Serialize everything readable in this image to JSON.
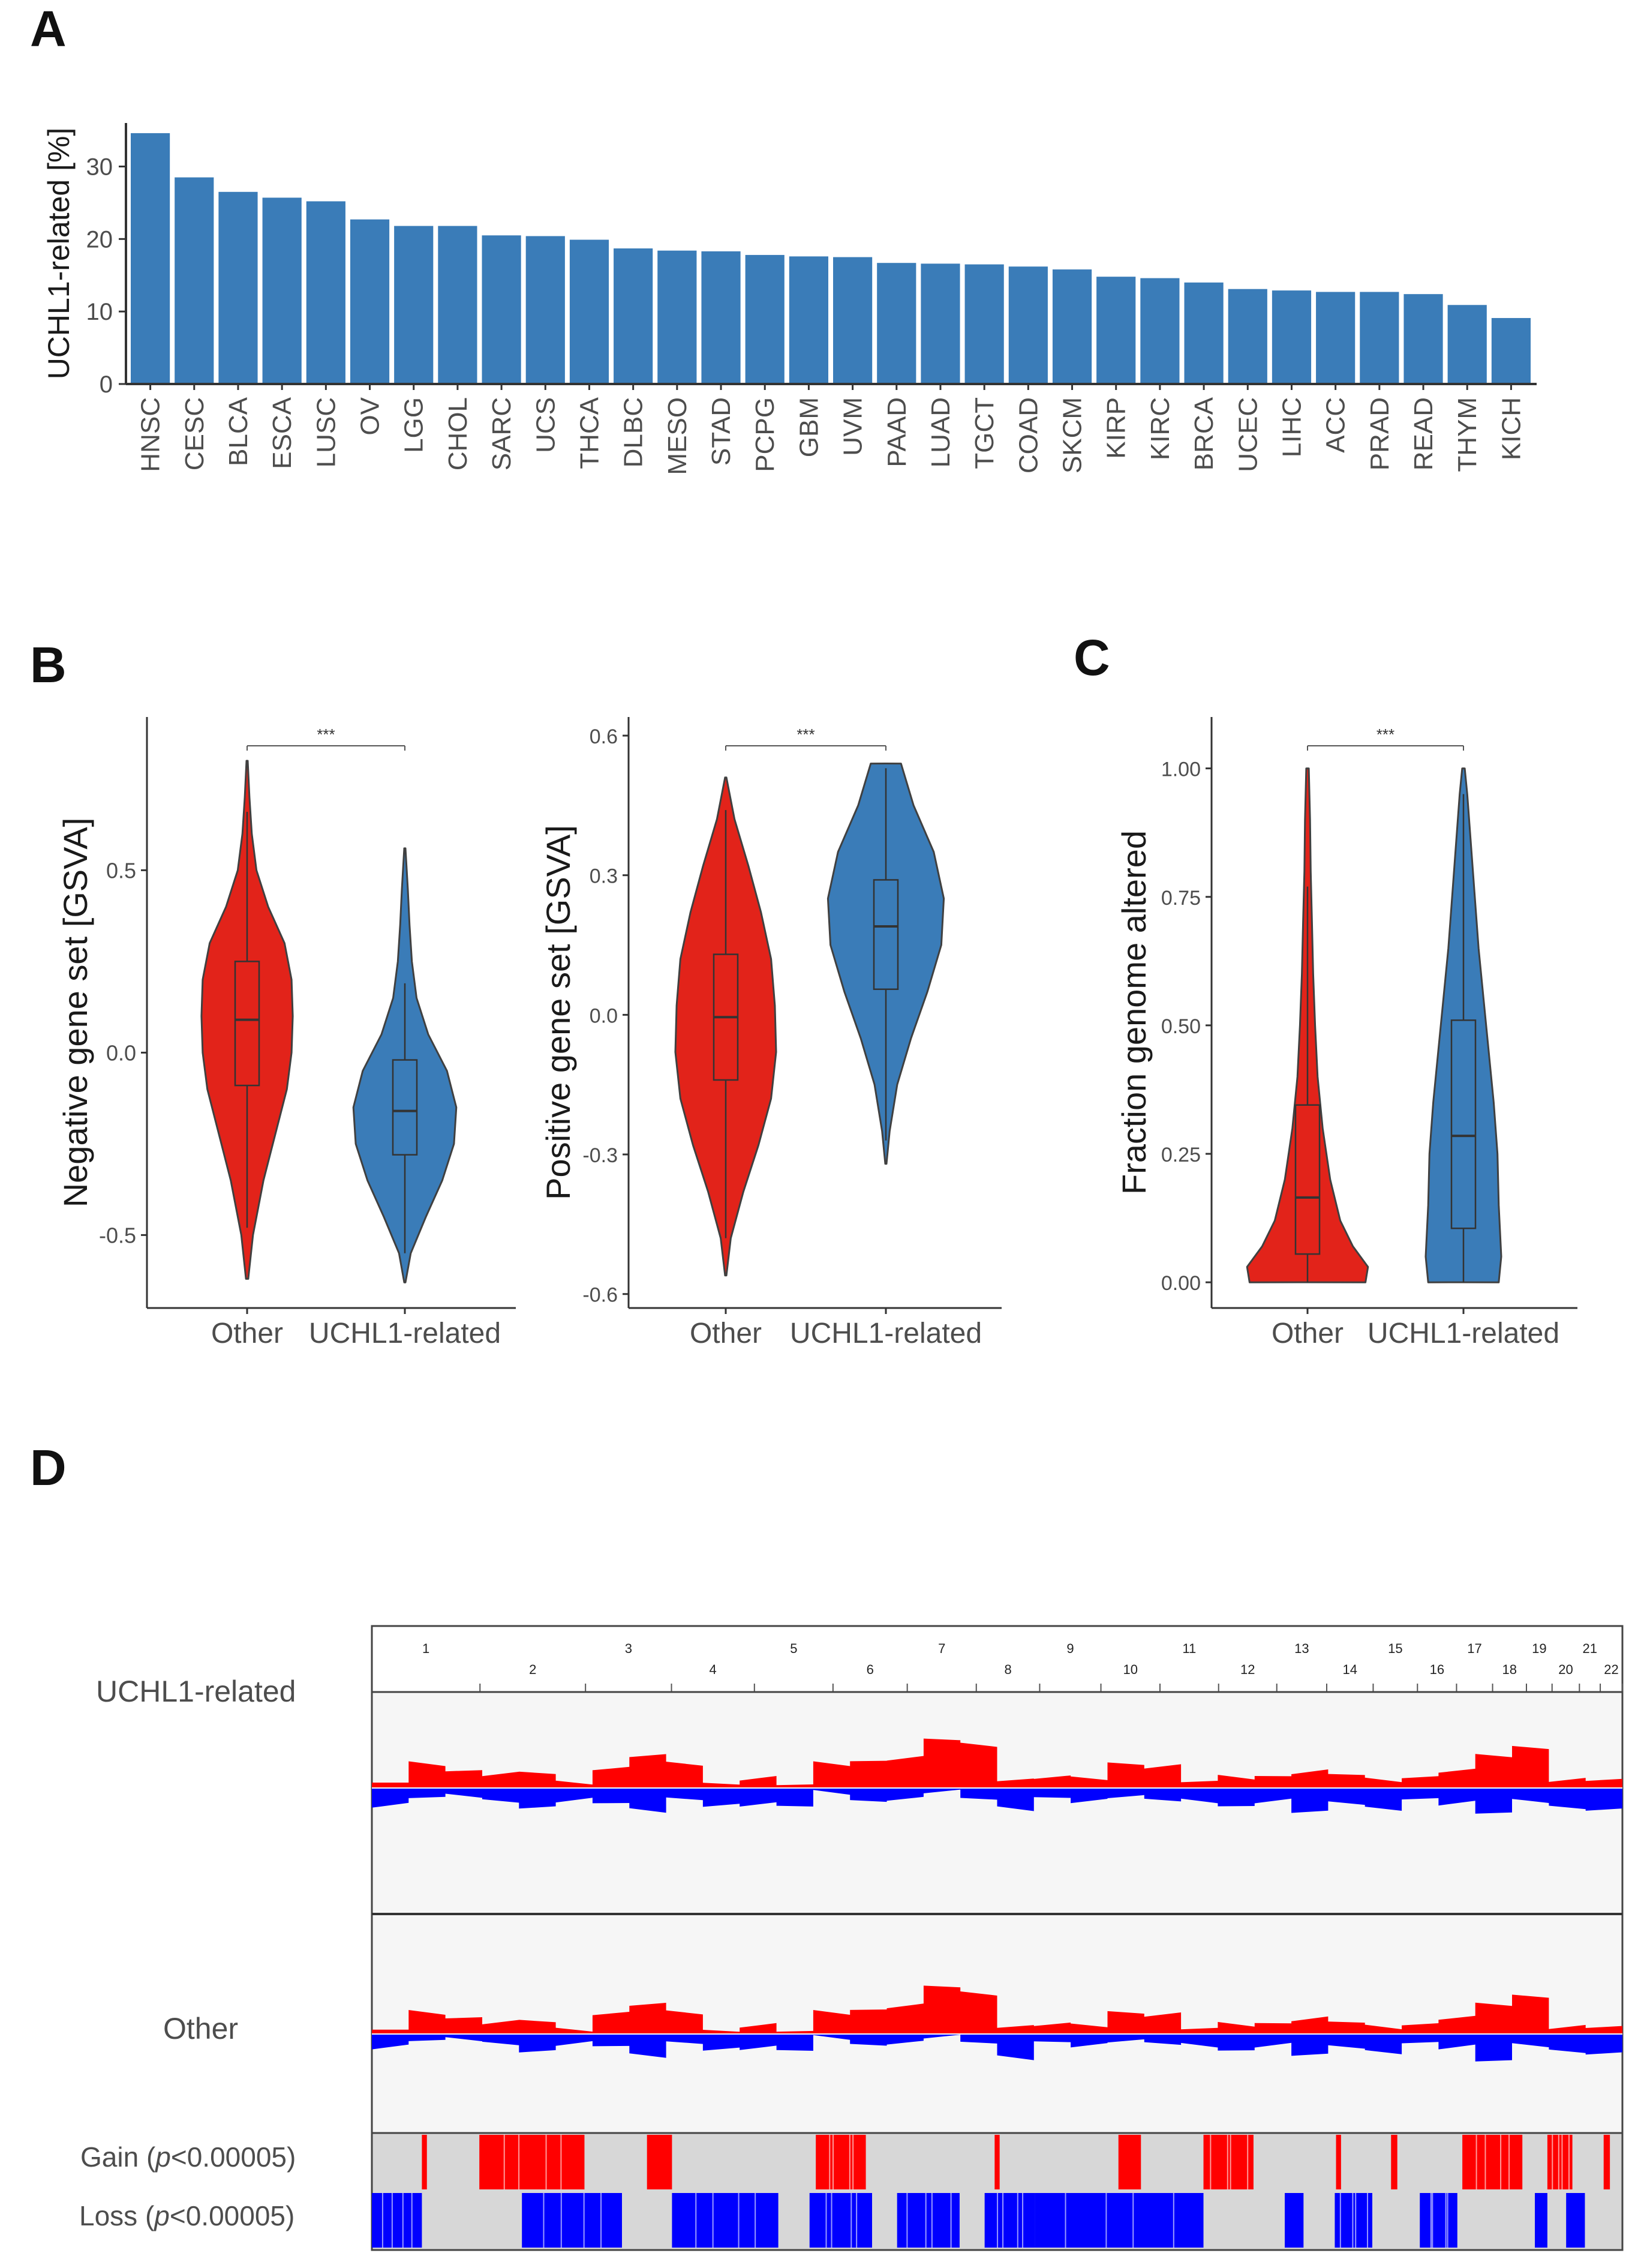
{
  "panels": {
    "a": "A",
    "b": "B",
    "c": "C",
    "d": "D"
  },
  "colors": {
    "bar": "#3a7cb8",
    "red": "#e2231a",
    "blue": "#3a7cb8",
    "gain": "#ff0000",
    "loss": "#0000ff",
    "bg": "#f6f6f6",
    "track": "#d7d7d7"
  },
  "chart_data": [
    {
      "id": "A",
      "type": "bar",
      "ylabel": "UCHL1-related [%]",
      "ylim": [
        0,
        36
      ],
      "yticks": [
        0,
        10,
        20,
        30
      ],
      "categories": [
        "HNSC",
        "CESC",
        "BLCA",
        "ESCA",
        "LUSC",
        "OV",
        "LGG",
        "CHOL",
        "SARC",
        "UCS",
        "THCA",
        "DLBC",
        "MESO",
        "STAD",
        "PCPG",
        "GBM",
        "UVM",
        "PAAD",
        "LUAD",
        "TGCT",
        "COAD",
        "SKCM",
        "KIRP",
        "KIRC",
        "BRCA",
        "UCEC",
        "LIHC",
        "ACC",
        "PRAD",
        "READ",
        "THYM",
        "KICH"
      ],
      "values": [
        34.6,
        28.5,
        26.5,
        25.7,
        25.2,
        22.7,
        21.8,
        21.8,
        20.5,
        20.4,
        19.9,
        18.7,
        18.4,
        18.3,
        17.8,
        17.6,
        17.5,
        16.7,
        16.6,
        16.5,
        16.2,
        15.8,
        14.8,
        14.6,
        14.0,
        13.1,
        12.9,
        12.7,
        12.7,
        12.4,
        10.9,
        9.1
      ]
    },
    {
      "id": "B-negative",
      "type": "violin",
      "ylabel": "Negative gene set [GSVA]",
      "ylim": [
        -0.7,
        0.92
      ],
      "yticks": [
        -0.5,
        0.0,
        0.5
      ],
      "ytick_labels": [
        "-0.5",
        "0.0",
        "0.5"
      ],
      "categories": [
        "Other",
        "UCHL1-related"
      ],
      "significance": "***",
      "groups": [
        {
          "name": "Other",
          "min": -0.62,
          "max": 0.8,
          "q1": -0.09,
          "median": 0.09,
          "q3": 0.25,
          "whisker_low": -0.48,
          "whisker_high": 0.66,
          "density": [
            [
              -0.62,
              0.01
            ],
            [
              -0.5,
              0.05
            ],
            [
              -0.35,
              0.14
            ],
            [
              -0.2,
              0.26
            ],
            [
              -0.1,
              0.34
            ],
            [
              0.0,
              0.38
            ],
            [
              0.1,
              0.39
            ],
            [
              0.2,
              0.38
            ],
            [
              0.3,
              0.32
            ],
            [
              0.4,
              0.18
            ],
            [
              0.5,
              0.08
            ],
            [
              0.6,
              0.04
            ],
            [
              0.7,
              0.02
            ],
            [
              0.8,
              0.005
            ]
          ]
        },
        {
          "name": "UCHL1-related",
          "min": -0.63,
          "max": 0.56,
          "q1": -0.28,
          "median": -0.16,
          "q3": -0.02,
          "whisker_low": -0.55,
          "whisker_high": 0.19,
          "density": [
            [
              -0.63,
              0.005
            ],
            [
              -0.55,
              0.05
            ],
            [
              -0.45,
              0.18
            ],
            [
              -0.35,
              0.32
            ],
            [
              -0.25,
              0.42
            ],
            [
              -0.15,
              0.44
            ],
            [
              -0.05,
              0.36
            ],
            [
              0.05,
              0.2
            ],
            [
              0.15,
              0.1
            ],
            [
              0.25,
              0.06
            ],
            [
              0.35,
              0.04
            ],
            [
              0.45,
              0.025
            ],
            [
              0.56,
              0.005
            ]
          ]
        }
      ]
    },
    {
      "id": "B-positive",
      "type": "violin",
      "ylabel": "Positive gene set [GSVA]",
      "ylim": [
        -0.63,
        0.64
      ],
      "yticks": [
        -0.6,
        -0.3,
        0.0,
        0.3,
        0.6
      ],
      "ytick_labels": [
        "-0.6",
        "-0.3",
        "0.0",
        "0.3",
        "0.6"
      ],
      "categories": [
        "Other",
        "UCHL1-related"
      ],
      "significance": "***",
      "groups": [
        {
          "name": "Other",
          "min": -0.56,
          "max": 0.51,
          "q1": -0.14,
          "median": -0.005,
          "q3": 0.13,
          "whisker_low": -0.48,
          "whisker_high": 0.44,
          "density": [
            [
              -0.56,
              0.005
            ],
            [
              -0.48,
              0.04
            ],
            [
              -0.38,
              0.14
            ],
            [
              -0.28,
              0.26
            ],
            [
              -0.18,
              0.36
            ],
            [
              -0.08,
              0.4
            ],
            [
              0.02,
              0.39
            ],
            [
              0.12,
              0.36
            ],
            [
              0.22,
              0.28
            ],
            [
              0.32,
              0.18
            ],
            [
              0.42,
              0.07
            ],
            [
              0.51,
              0.005
            ]
          ]
        },
        {
          "name": "UCHL1-related",
          "min": -0.32,
          "max": 0.54,
          "q1": 0.055,
          "median": 0.19,
          "q3": 0.29,
          "whisker_low": -0.27,
          "whisker_high": 0.53,
          "density": [
            [
              -0.32,
              0.005
            ],
            [
              -0.25,
              0.03
            ],
            [
              -0.15,
              0.09
            ],
            [
              -0.05,
              0.2
            ],
            [
              0.05,
              0.33
            ],
            [
              0.15,
              0.44
            ],
            [
              0.25,
              0.46
            ],
            [
              0.35,
              0.38
            ],
            [
              0.45,
              0.22
            ],
            [
              0.54,
              0.12
            ]
          ]
        }
      ]
    },
    {
      "id": "C",
      "type": "violin",
      "ylabel": "Fraction genome altered",
      "ylim": [
        -0.05,
        1.1
      ],
      "yticks": [
        0.0,
        0.25,
        0.5,
        0.75,
        1.0
      ],
      "ytick_labels": [
        "0.00",
        "0.25",
        "0.50",
        "0.75",
        "1.00"
      ],
      "categories": [
        "Other",
        "UCHL1-related"
      ],
      "significance": "***",
      "groups": [
        {
          "name": "Other",
          "min": 0.0,
          "max": 1.0,
          "q1": 0.055,
          "median": 0.165,
          "q3": 0.345,
          "whisker_low": 0.0,
          "whisker_high": 0.77,
          "density": [
            [
              0.0,
              0.46
            ],
            [
              0.03,
              0.48
            ],
            [
              0.07,
              0.36
            ],
            [
              0.12,
              0.26
            ],
            [
              0.2,
              0.18
            ],
            [
              0.3,
              0.12
            ],
            [
              0.4,
              0.08
            ],
            [
              0.5,
              0.06
            ],
            [
              0.6,
              0.045
            ],
            [
              0.7,
              0.035
            ],
            [
              0.8,
              0.025
            ],
            [
              0.9,
              0.02
            ],
            [
              1.0,
              0.01
            ]
          ]
        },
        {
          "name": "UCHL1-related",
          "min": 0.0,
          "max": 1.0,
          "q1": 0.105,
          "median": 0.285,
          "q3": 0.51,
          "whisker_low": 0.0,
          "whisker_high": 0.95,
          "density": [
            [
              0.0,
              0.28
            ],
            [
              0.05,
              0.3
            ],
            [
              0.15,
              0.28
            ],
            [
              0.25,
              0.27
            ],
            [
              0.35,
              0.24
            ],
            [
              0.45,
              0.2
            ],
            [
              0.55,
              0.16
            ],
            [
              0.65,
              0.12
            ],
            [
              0.75,
              0.09
            ],
            [
              0.85,
              0.06
            ],
            [
              0.95,
              0.03
            ],
            [
              1.0,
              0.01
            ]
          ]
        }
      ]
    },
    {
      "id": "D",
      "type": "copy-number-profile",
      "chromosomes": [
        "1",
        "2",
        "3",
        "4",
        "5",
        "6",
        "7",
        "8",
        "9",
        "10",
        "11",
        "12",
        "13",
        "14",
        "15",
        "16",
        "17",
        "18",
        "19",
        "20",
        "21",
        "22"
      ],
      "chrom_sizes": [
        249,
        243,
        198,
        191,
        181,
        171,
        159,
        146,
        141,
        136,
        135,
        134,
        115,
        107,
        102,
        90,
        83,
        78,
        59,
        63,
        48,
        51
      ],
      "tracks": [
        {
          "name": "UCHL1-related",
          "gain": [
            0.1,
            0.45,
            0.32,
            0.26,
            0.28,
            0.1,
            0.36,
            0.6,
            0.45,
            0.08,
            0.18,
            0.06,
            0.45,
            0.5,
            0.55,
            0.9,
            0.8,
            0.15,
            0.2,
            0.18,
            0.45,
            0.4,
            0.12,
            0.2,
            0.22,
            0.3,
            0.25,
            0.15,
            0.2,
            0.32,
            0.6,
            0.75,
            0.15,
            0.15
          ],
          "loss": [
            0.4,
            0.22,
            0.18,
            0.3,
            0.45,
            0.28,
            0.35,
            0.52,
            0.25,
            0.4,
            0.38,
            0.42,
            0.1,
            0.3,
            0.25,
            0.08,
            0.25,
            0.48,
            0.22,
            0.3,
            0.2,
            0.28,
            0.3,
            0.42,
            0.3,
            0.55,
            0.35,
            0.48,
            0.25,
            0.35,
            0.58,
            0.3,
            0.45,
            0.5
          ]
        },
        {
          "name": "Other",
          "gain": [
            0.08,
            0.4,
            0.3,
            0.22,
            0.24,
            0.08,
            0.38,
            0.55,
            0.4,
            0.06,
            0.16,
            0.05,
            0.4,
            0.45,
            0.52,
            0.88,
            0.75,
            0.14,
            0.18,
            0.16,
            0.4,
            0.36,
            0.1,
            0.18,
            0.2,
            0.28,
            0.22,
            0.13,
            0.18,
            0.3,
            0.55,
            0.7,
            0.13,
            0.13
          ],
          "loss": [
            0.3,
            0.15,
            0.12,
            0.22,
            0.4,
            0.22,
            0.28,
            0.5,
            0.2,
            0.35,
            0.32,
            0.38,
            0.08,
            0.25,
            0.2,
            0.06,
            0.2,
            0.55,
            0.18,
            0.26,
            0.16,
            0.22,
            0.26,
            0.38,
            0.26,
            0.48,
            0.3,
            0.42,
            0.2,
            0.3,
            0.62,
            0.26,
            0.4,
            0.45
          ]
        }
      ],
      "significance_tracks": [
        {
          "name": "Gain",
          "label_pre": "Gain (",
          "p_symbol": "p",
          "label_post": "<0.00005)",
          "blocks": [
            [
              0.04,
              0.044
            ],
            [
              0.086,
              0.088
            ],
            [
              0.086,
              0.17
            ],
            [
              0.22,
              0.224
            ],
            [
              0.222,
              0.24
            ],
            [
              0.355,
              0.395
            ],
            [
              0.498,
              0.502
            ],
            [
              0.597,
              0.615
            ],
            [
              0.665,
              0.705
            ],
            [
              0.771,
              0.775
            ],
            [
              0.815,
              0.82
            ],
            [
              0.872,
              0.92
            ],
            [
              0.94,
              0.96
            ],
            [
              0.985,
              0.988
            ],
            [
              0.986,
              0.99
            ]
          ]
        },
        {
          "name": "Loss",
          "label_pre": "Loss (",
          "p_symbol": "p",
          "label_post": "<0.00005)",
          "blocks": [
            [
              0.0,
              0.04
            ],
            [
              0.12,
              0.2
            ],
            [
              0.24,
              0.325
            ],
            [
              0.35,
              0.4
            ],
            [
              0.42,
              0.47
            ],
            [
              0.49,
              0.53
            ],
            [
              0.53,
              0.665
            ],
            [
              0.73,
              0.745
            ],
            [
              0.77,
              0.8
            ],
            [
              0.838,
              0.868
            ],
            [
              0.93,
              0.94
            ],
            [
              0.955,
              0.97
            ]
          ]
        }
      ]
    }
  ]
}
